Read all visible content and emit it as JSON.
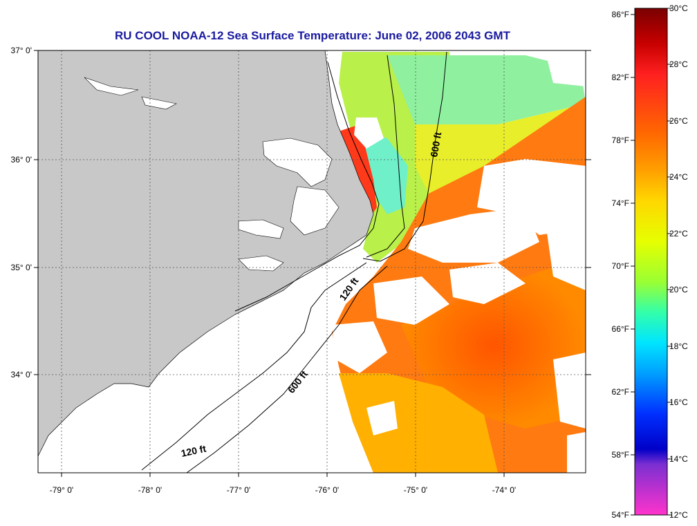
{
  "title": "RU COOL  NOAA-12  Sea Surface Temperature:  June 02, 2006 2043 GMT",
  "map": {
    "lon_range": [
      -79.3,
      -73.1
    ],
    "lat_range": [
      33.1,
      37.0
    ],
    "lat_ticks": [
      "37° 0'",
      "36° 0'",
      "35° 0'",
      "34° 0'"
    ],
    "lat_values": [
      37,
      36,
      35,
      34
    ],
    "lon_ticks": [
      "-79° 0'",
      "-78° 0'",
      "-77° 0'",
      "-76° 0'",
      "-75° 0'",
      "-74° 0'"
    ],
    "lon_values": [
      -79,
      -78,
      -77,
      -76,
      -75,
      -74
    ],
    "grid": "dotted",
    "land_color": "#c8c8c8",
    "cloud_color": "#ffffff",
    "contours": [
      {
        "label": "600 ft",
        "depth_ft": 600
      },
      {
        "label": "120 ft",
        "depth_ft": 120
      },
      {
        "label": "600 ft",
        "depth_ft": 600
      },
      {
        "label": "120 ft",
        "depth_ft": 120
      }
    ]
  },
  "colorbar": {
    "celsius_labels": [
      "30°C",
      "28°C",
      "26°C",
      "24°C",
      "22°C",
      "20°C",
      "18°C",
      "16°C",
      "14°C",
      "12°C"
    ],
    "fahrenheit_labels": [
      "86°F",
      "82°F",
      "78°F",
      "74°F",
      "70°F",
      "66°F",
      "62°F",
      "58°F",
      "54°F"
    ],
    "celsius_range": [
      12,
      30
    ],
    "fahrenheit_range": [
      54,
      86
    ],
    "stops": [
      "#7a0000",
      "#c80000",
      "#ff2020",
      "#ff6a00",
      "#ffa000",
      "#ffd700",
      "#e6ff00",
      "#9aff33",
      "#33ffaa",
      "#00e5ff",
      "#00a0ff",
      "#0030ff",
      "#0000c8",
      "#7b2fd1",
      "#ff33cc"
    ]
  }
}
